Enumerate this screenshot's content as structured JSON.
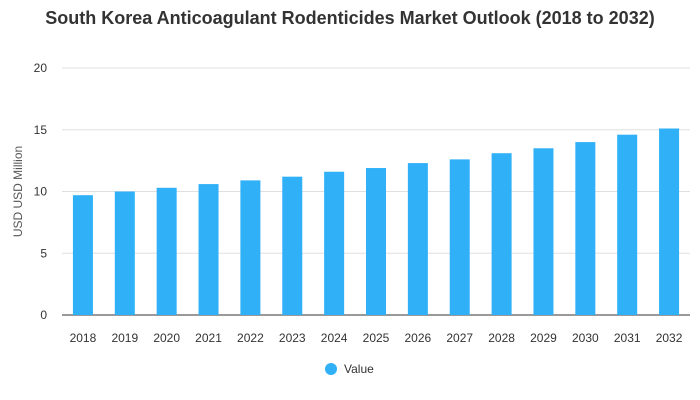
{
  "chart_data": {
    "type": "bar",
    "title": "South Korea Anticoagulant Rodenticides Market Outlook (2018 to 2032)",
    "xlabel": "",
    "ylabel": "USD USD Million",
    "categories": [
      "2018",
      "2019",
      "2020",
      "2021",
      "2022",
      "2023",
      "2024",
      "2025",
      "2026",
      "2027",
      "2028",
      "2029",
      "2030",
      "2031",
      "2032"
    ],
    "series": [
      {
        "name": "Value",
        "color": "#2fb0f7",
        "values": [
          9.7,
          10.0,
          10.3,
          10.6,
          10.9,
          11.2,
          11.6,
          11.9,
          12.3,
          12.6,
          13.1,
          13.5,
          14.0,
          14.6,
          15.1
        ]
      }
    ],
    "ylim": [
      0,
      20
    ],
    "yticks": [
      0,
      5,
      10,
      15,
      20
    ],
    "grid": true,
    "legend_position": "bottom"
  }
}
